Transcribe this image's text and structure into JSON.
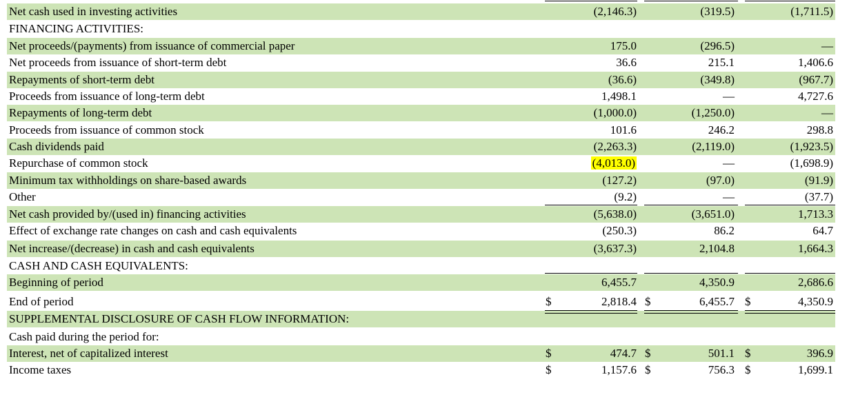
{
  "rows": [
    {
      "label": "Net cash used in investing activities",
      "v": [
        "(2,146.3)",
        "(319.5)",
        "(1,711.5)"
      ]
    },
    {
      "label": "FINANCING ACTIVITIES:",
      "v": [
        "",
        "",
        ""
      ]
    },
    {
      "label": "Net proceeds/(payments) from issuance of commercial paper",
      "v": [
        "175.0",
        "(296.5)",
        "—"
      ]
    },
    {
      "label": "Net proceeds from issuance of short-term debt",
      "v": [
        "36.6",
        "215.1",
        "1,406.6"
      ]
    },
    {
      "label": "Repayments of short-term debt",
      "v": [
        "(36.6)",
        "(349.8)",
        "(967.7)"
      ]
    },
    {
      "label": "Proceeds from issuance of long-term debt",
      "v": [
        "1,498.1",
        "—",
        "4,727.6"
      ]
    },
    {
      "label": "Repayments of long-term debt",
      "v": [
        "(1,000.0)",
        "(1,250.0)",
        "—"
      ]
    },
    {
      "label": "Proceeds from issuance of common stock",
      "v": [
        "101.6",
        "246.2",
        "298.8"
      ]
    },
    {
      "label": "Cash dividends paid",
      "v": [
        "(2,263.3)",
        "(2,119.0)",
        "(1,923.5)"
      ]
    },
    {
      "label": "Repurchase of common stock",
      "v": [
        "(4,013.0)",
        "—",
        "(1,698.9)"
      ]
    },
    {
      "label": "Minimum tax withholdings on share-based awards",
      "v": [
        "(127.2)",
        "(97.0)",
        "(91.9)"
      ]
    },
    {
      "label": "Other",
      "v": [
        "(9.2)",
        "—",
        "(37.7)"
      ]
    },
    {
      "label": "Net cash provided by/(used in) financing activities",
      "v": [
        "(5,638.0)",
        "(3,651.0)",
        "1,713.3"
      ]
    },
    {
      "label": "Effect of exchange rate changes on cash and cash equivalents",
      "v": [
        "(250.3)",
        "86.2",
        "64.7"
      ]
    },
    {
      "label": "Net increase/(decrease) in cash and cash equivalents",
      "v": [
        "(3,637.3)",
        "2,104.8",
        "1,664.3"
      ]
    },
    {
      "label": "CASH AND CASH EQUIVALENTS:",
      "v": [
        "",
        "",
        ""
      ]
    },
    {
      "label": "Beginning of period",
      "v": [
        "6,455.7",
        "4,350.9",
        "2,686.6"
      ]
    },
    {
      "label": "End of period",
      "v": [
        "2,818.4",
        "6,455.7",
        "4,350.9"
      ]
    },
    {
      "label": "SUPPLEMENTAL DISCLOSURE OF CASH FLOW INFORMATION:",
      "v": [
        "",
        "",
        ""
      ]
    },
    {
      "label": "Cash paid during the period for:",
      "v": [
        "",
        "",
        ""
      ]
    },
    {
      "label": "Interest, net of capitalized interest",
      "v": [
        "474.7",
        "501.1",
        "396.9"
      ]
    },
    {
      "label": "Income taxes",
      "v": [
        "1,157.6",
        "756.3",
        "1,699.1"
      ]
    }
  ],
  "currency_symbol": "$"
}
